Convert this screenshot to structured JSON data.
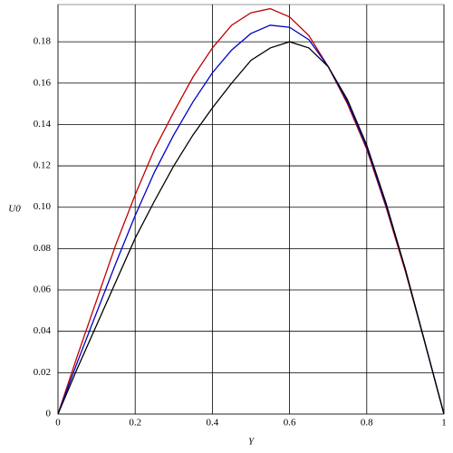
{
  "chart_data": {
    "type": "line",
    "xlabel": "Y",
    "ylabel": "U0",
    "x": [
      0,
      0.05,
      0.1,
      0.15,
      0.2,
      0.25,
      0.3,
      0.35,
      0.4,
      0.45,
      0.5,
      0.55,
      0.6,
      0.65,
      0.7,
      0.75,
      0.8,
      0.85,
      0.9,
      0.95,
      1
    ],
    "series": [
      {
        "color": "#c00000",
        "values": [
          0,
          0.028,
          0.055,
          0.082,
          0.106,
          0.128,
          0.146,
          0.163,
          0.177,
          0.188,
          0.194,
          0.196,
          0.192,
          0.183,
          0.168,
          0.15,
          0.128,
          0.1,
          0.069,
          0.035,
          0
        ]
      },
      {
        "color": "#0000c8",
        "values": [
          0,
          0.025,
          0.049,
          0.073,
          0.096,
          0.117,
          0.135,
          0.151,
          0.165,
          0.176,
          0.184,
          0.188,
          0.187,
          0.181,
          0.168,
          0.151,
          0.129,
          0.101,
          0.07,
          0.035,
          0
        ]
      },
      {
        "color": "#000000",
        "values": [
          0,
          0.022,
          0.043,
          0.064,
          0.085,
          0.103,
          0.12,
          0.135,
          0.148,
          0.16,
          0.171,
          0.177,
          0.18,
          0.177,
          0.168,
          0.152,
          0.13,
          0.102,
          0.07,
          0.035,
          0
        ]
      }
    ],
    "xlim": [
      0,
      1
    ],
    "ylim": [
      0,
      0.198
    ],
    "xticks": [
      0,
      0.2,
      0.4,
      0.6,
      0.8,
      1
    ],
    "yticks": [
      0,
      0.02,
      0.04,
      0.06,
      0.08,
      {
        "value": 0.1,
        "label": "0.10"
      },
      0.12,
      0.14,
      0.16,
      0.18
    ],
    "grid": true
  }
}
